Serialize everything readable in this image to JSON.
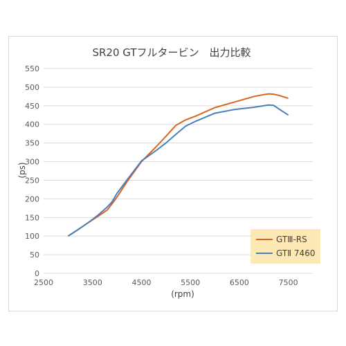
{
  "chart_data": {
    "type": "line",
    "title": "SR20 GTフルタービン　出力比較",
    "xlabel": "(rpm)",
    "ylabel": "(ps)",
    "xlim": [
      2500,
      8000
    ],
    "ylim": [
      0,
      550
    ],
    "x_ticks": [
      2500,
      3500,
      4500,
      5500,
      6500,
      7500
    ],
    "y_ticks": [
      0,
      50,
      100,
      150,
      200,
      250,
      300,
      350,
      400,
      450,
      500,
      550
    ],
    "x_tick_labels": [
      "2500",
      "3500",
      "4500",
      "5500",
      "6500",
      "7500"
    ],
    "y_tick_labels": [
      "0",
      "50",
      "100",
      "150",
      "200",
      "250",
      "300",
      "350",
      "400",
      "450",
      "500",
      "550"
    ],
    "grid": "horizontal",
    "legend_position": "bottom-right",
    "legend_bg": "#fde9b6",
    "series": [
      {
        "name": "GTⅢ-RS",
        "color": "#d9651f",
        "x": [
          3000,
          3200,
          3400,
          3600,
          3800,
          3900,
          4000,
          4200,
          4500,
          4800,
          5000,
          5200,
          5400,
          5600,
          6000,
          6400,
          6800,
          7000,
          7100,
          7200,
          7300,
          7500
        ],
        "values": [
          100,
          117,
          135,
          152,
          170,
          187,
          205,
          245,
          300,
          340,
          368,
          397,
          412,
          422,
          445,
          460,
          475,
          480,
          482,
          481,
          478,
          470
        ]
      },
      {
        "name": "GTⅡ 7460",
        "color": "#4a7ebb",
        "x": [
          3000,
          3200,
          3400,
          3600,
          3800,
          3900,
          4000,
          4200,
          4500,
          4800,
          5000,
          5200,
          5400,
          5600,
          6000,
          6400,
          6800,
          7000,
          7100,
          7200,
          7300,
          7500
        ],
        "values": [
          100,
          117,
          135,
          155,
          178,
          192,
          215,
          250,
          302,
          330,
          350,
          373,
          395,
          408,
          430,
          440,
          446,
          450,
          452,
          451,
          442,
          425
        ]
      }
    ]
  }
}
